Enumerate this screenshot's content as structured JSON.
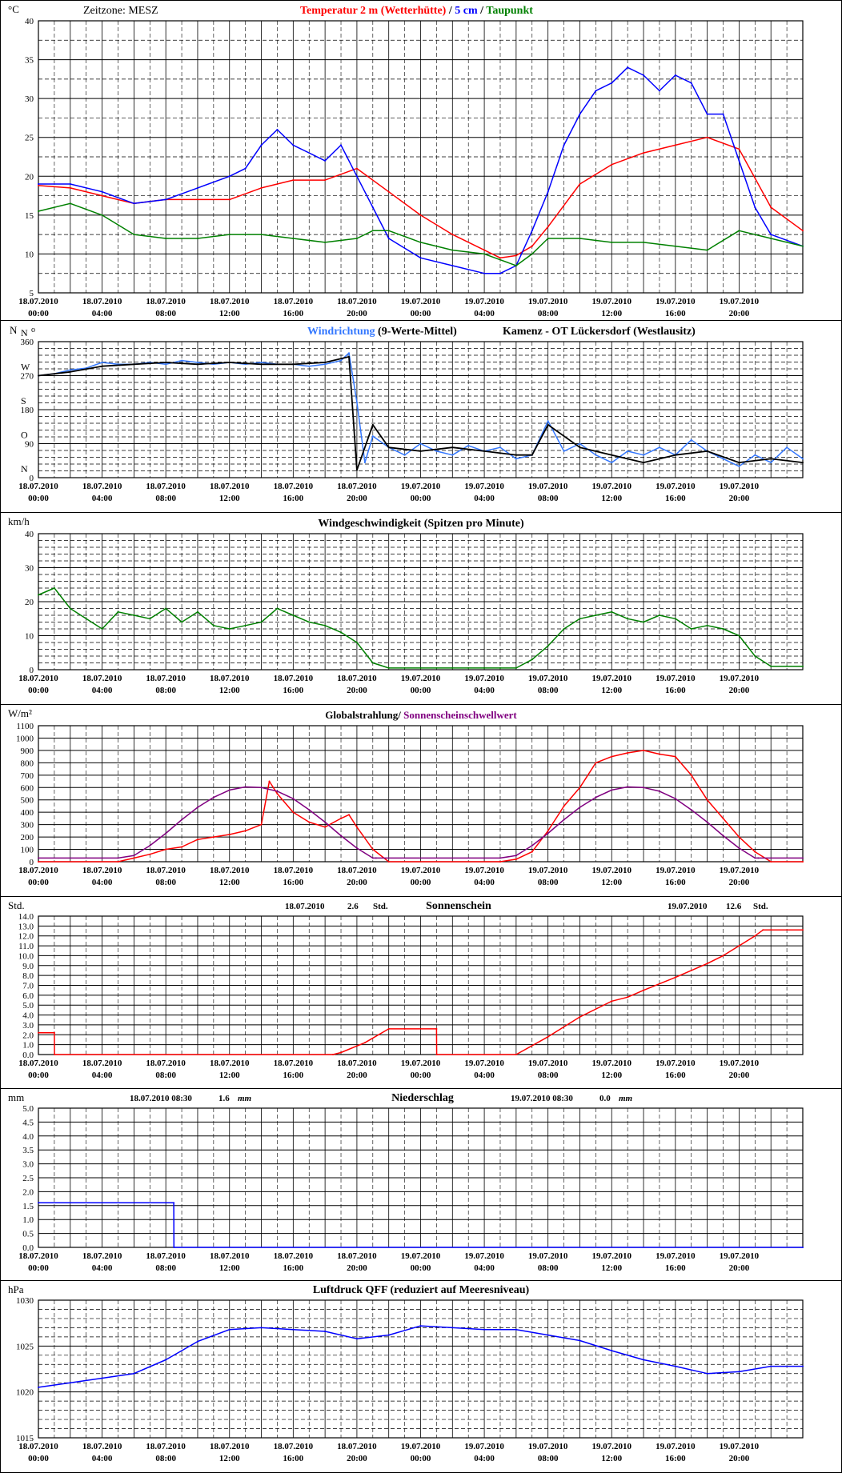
{
  "x_axis": {
    "date_labels": [
      "18.07.2010",
      "18.07.2010",
      "18.07.2010",
      "18.07.2010",
      "18.07.2010",
      "18.07.2010",
      "19.07.2010",
      "19.07.2010",
      "19.07.2010",
      "19.07.2010",
      "19.07.2010",
      "19.07.2010"
    ],
    "time_labels": [
      "00:00",
      "04:00",
      "08:00",
      "12:00",
      "16:00",
      "20:00",
      "00:00",
      "04:00",
      "08:00",
      "12:00",
      "16:00",
      "20:00"
    ],
    "range_hours": [
      0,
      48
    ]
  },
  "colors": {
    "red": "#ff0000",
    "blue": "#0000ff",
    "green": "#008000",
    "lightblue": "#3377ff",
    "purple": "#800080",
    "black": "#000000"
  },
  "chart_data": [
    {
      "type": "line",
      "title_parts": [
        {
          "text": "Zeitzone: MESZ",
          "color": "#000000"
        },
        {
          "text": "Temperatur 2 m (Wetterhütte)",
          "color": "#ff0000"
        },
        {
          "text": " / ",
          "color": "#000000"
        },
        {
          "text": "5 cm",
          "color": "#0000ff"
        },
        {
          "text": " / ",
          "color": "#000000"
        },
        {
          "text": "Taupunkt",
          "color": "#008000"
        }
      ],
      "unit": "°C",
      "ylim": [
        5,
        40
      ],
      "y_ticks": [
        5,
        10,
        15,
        20,
        25,
        30,
        35,
        40
      ],
      "series": [
        {
          "name": "Temperatur 2 m (Wetterhütte)",
          "color": "#ff0000",
          "x": [
            0,
            2,
            4,
            6,
            8,
            12,
            14,
            16,
            18,
            20,
            22,
            24,
            26,
            28,
            29,
            30,
            31,
            32,
            34,
            36,
            38,
            40,
            42,
            44,
            46,
            48
          ],
          "y": [
            18.8,
            18.5,
            17.5,
            16.5,
            17,
            17,
            18.5,
            19.5,
            19.5,
            21,
            18,
            15,
            12.5,
            10.5,
            9.5,
            9.8,
            11,
            13.5,
            19,
            21.5,
            23,
            24,
            25,
            23.5,
            16,
            13
          ]
        },
        {
          "name": "5 cm",
          "color": "#0000ff",
          "x": [
            0,
            2,
            4,
            6,
            8,
            10,
            12,
            13,
            14,
            15,
            16,
            18,
            19,
            20,
            21,
            22,
            24,
            26,
            28,
            29,
            30,
            31,
            32,
            33,
            34,
            35,
            36,
            37,
            38,
            39,
            40,
            41,
            42,
            43,
            44,
            45,
            46,
            48
          ],
          "y": [
            19,
            19,
            18,
            16.5,
            17,
            18.5,
            20,
            21,
            24,
            26,
            24,
            22,
            24,
            20,
            16,
            12,
            9.5,
            8.5,
            7.5,
            7.5,
            8.5,
            13,
            18,
            24,
            28,
            31,
            32,
            34,
            33,
            31,
            33,
            32,
            28,
            28,
            22,
            16,
            12.5,
            11
          ]
        },
        {
          "name": "Taupunkt",
          "color": "#008000",
          "x": [
            0,
            2,
            4,
            6,
            8,
            10,
            12,
            14,
            16,
            18,
            20,
            21,
            22,
            24,
            26,
            28,
            30,
            31,
            32,
            34,
            36,
            38,
            40,
            42,
            44,
            46,
            48
          ],
          "y": [
            15.5,
            16.5,
            15,
            12.5,
            12,
            12,
            12.5,
            12.5,
            12,
            11.5,
            12,
            13,
            13,
            11.5,
            10.5,
            10,
            8.5,
            10,
            12,
            12,
            11.5,
            11.5,
            11,
            10.5,
            13,
            12,
            11
          ]
        }
      ]
    },
    {
      "type": "line",
      "title_parts": [
        {
          "text": "Windrichtung",
          "color": "#3377ff"
        },
        {
          "text": " (9-Werte-Mittel)",
          "color": "#000000"
        },
        {
          "text": "Kamenz - OT Lückersdorf (Westlausitz)",
          "color": "#000000"
        }
      ],
      "unit": "N",
      "ylim": [
        0,
        360
      ],
      "y_ticks": [
        0,
        90,
        180,
        270,
        360
      ],
      "direction_labels": [
        "N",
        "O",
        "S",
        "W",
        "N"
      ],
      "series": [
        {
          "name": "Windrichtung",
          "color": "#3377ff",
          "x": [
            0,
            1,
            2,
            3,
            4,
            5,
            6,
            7,
            8,
            9,
            10,
            11,
            12,
            13,
            14,
            15,
            16,
            17,
            18,
            19,
            19.5,
            20,
            20.5,
            21,
            22,
            23,
            24,
            25,
            26,
            27,
            28,
            29,
            30,
            31,
            32,
            33,
            34,
            35,
            36,
            37,
            38,
            39,
            40,
            41,
            42,
            43,
            44,
            45,
            46,
            47,
            48
          ],
          "y": [
            270,
            275,
            285,
            290,
            305,
            300,
            300,
            305,
            300,
            310,
            305,
            300,
            305,
            300,
            305,
            300,
            300,
            295,
            300,
            310,
            330,
            200,
            40,
            110,
            80,
            60,
            90,
            70,
            60,
            85,
            70,
            80,
            50,
            60,
            150,
            70,
            90,
            60,
            40,
            70,
            60,
            80,
            60,
            100,
            70,
            50,
            30,
            60,
            40,
            80,
            50
          ]
        },
        {
          "name": "9-Werte-Mittel",
          "color": "#000000",
          "x": [
            0,
            2,
            4,
            6,
            8,
            10,
            12,
            14,
            16,
            18,
            19.5,
            20,
            21,
            22,
            24,
            26,
            28,
            30,
            31,
            32,
            34,
            36,
            38,
            40,
            42,
            44,
            46,
            48
          ],
          "y": [
            270,
            280,
            295,
            300,
            305,
            300,
            305,
            300,
            300,
            305,
            320,
            20,
            140,
            80,
            70,
            80,
            70,
            60,
            60,
            140,
            80,
            60,
            40,
            60,
            70,
            40,
            50,
            40
          ]
        }
      ]
    },
    {
      "type": "line",
      "title_parts": [
        {
          "text": "Windgeschwindigkeit (Spitzen pro Minute)",
          "color": "#000000"
        }
      ],
      "unit": "km/h",
      "ylim": [
        0,
        40
      ],
      "y_ticks": [
        0,
        10,
        20,
        30,
        40
      ],
      "series": [
        {
          "name": "Windgeschwindigkeit",
          "color": "#008000",
          "x": [
            0,
            1,
            2,
            3,
            4,
            5,
            6,
            7,
            8,
            9,
            10,
            11,
            12,
            13,
            14,
            15,
            16,
            17,
            18,
            19,
            20,
            21,
            22,
            23,
            24,
            25,
            26,
            27,
            28,
            29,
            30,
            31,
            32,
            33,
            34,
            35,
            36,
            37,
            38,
            39,
            40,
            41,
            42,
            43,
            44,
            45,
            46,
            47,
            48
          ],
          "y": [
            22,
            24,
            18,
            15,
            12,
            17,
            16,
            15,
            18,
            14,
            17,
            13,
            12,
            13,
            14,
            18,
            16,
            14,
            13,
            11,
            8,
            2,
            0.5,
            0.5,
            0.5,
            0.5,
            0.5,
            0.5,
            0.5,
            0.5,
            0.5,
            3,
            7,
            12,
            15,
            16,
            17,
            15,
            14,
            16,
            15,
            12,
            13,
            12,
            10,
            4,
            1,
            1,
            1
          ]
        }
      ]
    },
    {
      "type": "line",
      "title_parts": [
        {
          "text": "Globalstrahlung/ ",
          "color": "#000000"
        },
        {
          "text": "Sonnenscheinschwellwert",
          "color": "#800080"
        }
      ],
      "unit": "W/m²",
      "ylim": [
        0,
        1100
      ],
      "y_ticks": [
        0,
        100,
        200,
        300,
        400,
        500,
        600,
        700,
        800,
        900,
        1000,
        1100
      ],
      "series": [
        {
          "name": "Globalstrahlung",
          "color": "#ff0000",
          "x": [
            0,
            5,
            6,
            7,
            8,
            9,
            10,
            11,
            12,
            13,
            14,
            14.5,
            15,
            16,
            17,
            18,
            19,
            19.5,
            20,
            21,
            22,
            29,
            30,
            31,
            32,
            33,
            34,
            35,
            36,
            37,
            38,
            39,
            40,
            41,
            42,
            43,
            44,
            45,
            46,
            48
          ],
          "y": [
            0,
            0,
            30,
            60,
            100,
            120,
            180,
            200,
            220,
            250,
            300,
            650,
            550,
            400,
            320,
            280,
            350,
            380,
            280,
            100,
            0,
            0,
            20,
            80,
            250,
            450,
            600,
            800,
            850,
            880,
            900,
            870,
            850,
            700,
            500,
            350,
            200,
            80,
            0,
            0
          ]
        },
        {
          "name": "Sonnenscheinschwellwert",
          "color": "#800080",
          "x": [
            0,
            5,
            6,
            7,
            8,
            9,
            10,
            11,
            12,
            13,
            14,
            15,
            16,
            17,
            18,
            19,
            20,
            21,
            21.2,
            29,
            30,
            31,
            32,
            33,
            34,
            35,
            36,
            37,
            38,
            39,
            40,
            41,
            42,
            43,
            44,
            45,
            45.2,
            48
          ],
          "y": [
            30,
            30,
            50,
            130,
            230,
            340,
            440,
            520,
            580,
            605,
            600,
            570,
            510,
            420,
            320,
            210,
            110,
            30,
            30,
            30,
            50,
            130,
            230,
            340,
            440,
            520,
            580,
            605,
            600,
            570,
            510,
            420,
            320,
            210,
            110,
            30,
            30,
            30
          ]
        }
      ]
    },
    {
      "type": "line",
      "title_parts": [
        {
          "text": "Sonnenschein",
          "color": "#000000"
        }
      ],
      "unit": "Std.",
      "annotations": [
        {
          "date": "18.07.2010",
          "value": "2.6",
          "unit": "Std."
        },
        {
          "date": "19.07.2010",
          "value": "12.6",
          "unit": "Std."
        }
      ],
      "ylim": [
        0,
        14
      ],
      "y_ticks": [
        0.0,
        1.0,
        2.0,
        3.0,
        4.0,
        5.0,
        6.0,
        7.0,
        8.0,
        9.0,
        10.0,
        11.0,
        12.0,
        13.0,
        14.0
      ],
      "series": [
        {
          "name": "Sonnenschein",
          "color": "#ff0000",
          "x": [
            0,
            1,
            1.01,
            18.5,
            19,
            20.5,
            22,
            23,
            25,
            25.01,
            30,
            32,
            34,
            36,
            37,
            38,
            40,
            42,
            43,
            44,
            45,
            45.5,
            48
          ],
          "y": [
            2.2,
            2.2,
            0,
            0,
            0.2,
            1.2,
            2.6,
            2.6,
            2.6,
            0,
            0,
            1.8,
            3.8,
            5.4,
            5.8,
            6.5,
            7.8,
            9.2,
            10,
            11,
            12,
            12.6,
            12.6
          ]
        }
      ]
    },
    {
      "type": "line",
      "title_parts": [
        {
          "text": "Niederschlag",
          "color": "#000000"
        }
      ],
      "unit": "mm",
      "annotations": [
        {
          "date": "18.07.2010 08:30",
          "value": "1.6",
          "unit": "mm"
        },
        {
          "date": "19.07.2010 08:30",
          "value": "0.0",
          "unit": "mm"
        }
      ],
      "ylim": [
        0,
        5
      ],
      "y_ticks": [
        0.0,
        0.5,
        1.0,
        1.5,
        2.0,
        2.5,
        3.0,
        3.5,
        4.0,
        4.5,
        5.0
      ],
      "series": [
        {
          "name": "Niederschlag",
          "color": "#0000ff",
          "x": [
            0,
            8.5,
            8.51,
            48
          ],
          "y": [
            1.6,
            1.6,
            0,
            0
          ]
        }
      ]
    },
    {
      "type": "line",
      "title_parts": [
        {
          "text": "Luftdruck QFF (reduziert auf Meeresniveau)",
          "color": "#000000"
        }
      ],
      "unit": "hPa",
      "ylim": [
        1015,
        1030
      ],
      "y_ticks": [
        1015,
        1020,
        1025,
        1030
      ],
      "series": [
        {
          "name": "Luftdruck QFF",
          "color": "#0000ff",
          "x": [
            0,
            2,
            4,
            6,
            8,
            10,
            12,
            14,
            16,
            18,
            20,
            22,
            24,
            26,
            28,
            30,
            32,
            34,
            36,
            38,
            40,
            42,
            44,
            46,
            48
          ],
          "y": [
            1020.5,
            1021,
            1021.5,
            1022,
            1023.5,
            1025.5,
            1026.8,
            1027,
            1026.8,
            1026.6,
            1025.8,
            1026.2,
            1027.2,
            1027,
            1026.8,
            1026.8,
            1026.2,
            1025.6,
            1024.5,
            1023.5,
            1022.8,
            1022,
            1022.2,
            1022.8,
            1022.8
          ]
        }
      ]
    }
  ]
}
